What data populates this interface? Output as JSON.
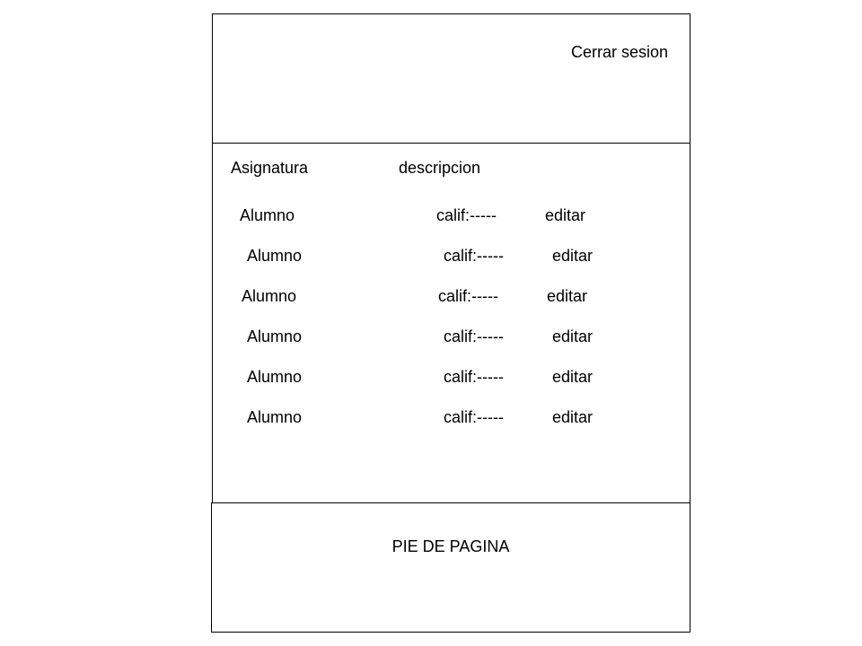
{
  "header": {
    "logout_label": "Cerrar sesion"
  },
  "main": {
    "columns": {
      "subject": "Asignatura",
      "description": "descripcion"
    },
    "rows": [
      {
        "name": "Alumno",
        "grade": "calif:-----",
        "action": "editar"
      },
      {
        "name": "Alumno",
        "grade": "calif:-----",
        "action": "editar"
      },
      {
        "name": "Alumno",
        "grade": "calif:-----",
        "action": "editar"
      },
      {
        "name": "Alumno",
        "grade": "calif:-----",
        "action": "editar"
      },
      {
        "name": "Alumno",
        "grade": "calif:-----",
        "action": "editar"
      },
      {
        "name": "Alumno",
        "grade": "calif:-----",
        "action": "editar"
      }
    ]
  },
  "footer": {
    "text": "PIE DE PAGINA"
  }
}
